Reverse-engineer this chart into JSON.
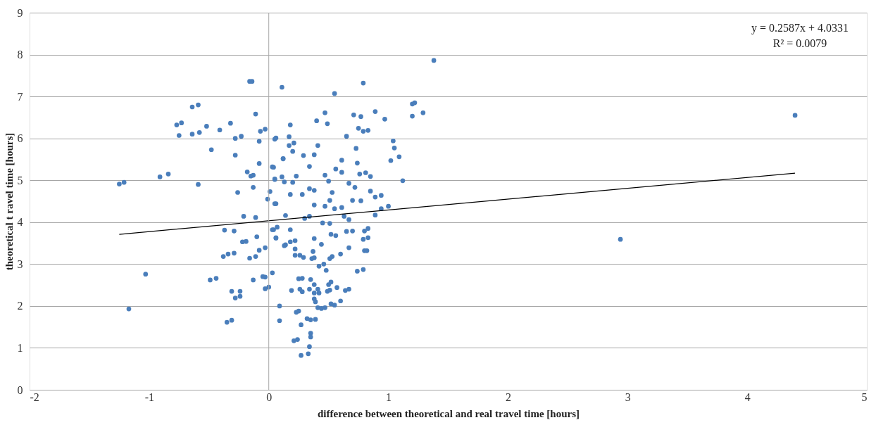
{
  "chart_data": {
    "type": "scatter",
    "xlabel": "difference between theoretical and real travel time [hours]",
    "ylabel": "theoretical t ravel time  [hours]",
    "xlim": [
      -2,
      5
    ],
    "xticks": [
      -2,
      -1,
      0,
      1,
      2,
      3,
      4,
      5
    ],
    "ylim": [
      0,
      9
    ],
    "yticks": [
      0,
      1,
      2,
      3,
      4,
      5,
      6,
      7,
      8,
      9
    ],
    "grid": "y",
    "marker": "circle",
    "annotations": [
      "y = 0.2587x + 4.0331",
      "R² = 0.0079"
    ],
    "ref_lines": [
      {
        "axis": "x",
        "value": 0,
        "color": "#a6a6a6"
      }
    ],
    "series": [
      {
        "color": "#4a7ebb",
        "x": [
          -0.16,
          -0.14,
          0.11,
          -0.64,
          -0.59,
          -0.11,
          -0.77,
          -0.73,
          -0.52,
          -0.41,
          -0.32,
          -0.75,
          -0.64,
          -0.58,
          -0.28,
          -0.23,
          -0.07,
          -0.03,
          -0.08,
          -0.48,
          -0.28,
          -0.08,
          -0.18,
          -0.15,
          -0.13,
          -1.25,
          -1.21,
          -0.91,
          -0.84,
          -0.59,
          -0.26,
          -0.13,
          -0.21,
          -0.11,
          -0.37,
          -0.29,
          -0.22,
          -0.19,
          -0.1,
          -0.38,
          -0.34,
          -0.29,
          -0.16,
          -0.11,
          -0.08,
          -0.03,
          -1.03,
          -0.49,
          -0.44,
          -0.13,
          -0.05,
          -0.03,
          0.03,
          -0.31,
          -0.24,
          -0.28,
          -0.24,
          -0.03,
          0.0,
          -1.17,
          -0.35,
          -0.31,
          0.09,
          0.09,
          0.13,
          0.06,
          0.04,
          0.05,
          0.04,
          0.01,
          -0.01,
          0.06,
          0.06,
          0.12,
          0.79,
          0.55,
          0.47,
          0.4,
          0.49,
          0.18,
          0.71,
          0.77,
          0.89,
          0.97,
          0.75,
          0.79,
          0.83,
          0.65,
          0.05,
          0.17,
          0.17,
          0.21,
          0.2,
          0.41,
          0.29,
          0.38,
          0.12,
          0.73,
          0.74,
          1.04,
          1.05,
          1.09,
          1.02,
          0.34,
          0.61,
          0.56,
          0.61,
          0.03,
          0.05,
          0.11,
          0.13,
          0.2,
          0.23,
          0.47,
          0.5,
          0.67,
          0.72,
          0.76,
          0.81,
          0.85,
          1.12,
          0.18,
          0.28,
          0.34,
          0.38,
          0.53,
          0.7,
          0.77,
          0.85,
          0.89,
          0.94,
          0.05,
          0.38,
          0.47,
          0.55,
          0.61,
          0.51,
          0.94,
          1.0,
          0.89,
          0.63,
          0.67,
          0.14,
          0.3,
          0.34,
          0.45,
          0.51,
          0.03,
          0.07,
          0.18,
          0.65,
          0.7,
          0.8,
          0.83,
          0.52,
          0.56,
          0.06,
          0.38,
          0.79,
          0.83,
          0.14,
          0.18,
          0.22,
          0.44,
          0.67,
          0.22,
          0.22,
          0.26,
          0.29,
          0.37,
          0.36,
          0.38,
          0.51,
          0.53,
          0.6,
          0.8,
          0.82,
          0.42,
          0.46,
          0.48,
          0.74,
          0.79,
          0.25,
          0.28,
          0.35,
          0.52,
          0.5,
          0.19,
          0.26,
          0.28,
          0.34,
          0.38,
          0.38,
          0.41,
          0.42,
          0.38,
          0.49,
          0.51,
          0.57,
          0.64,
          0.67,
          0.39,
          0.41,
          0.44,
          0.47,
          0.52,
          0.55,
          0.6,
          0.23,
          0.25,
          0.27,
          0.32,
          0.35,
          0.39,
          0.35,
          0.35,
          0.21,
          0.24,
          0.34,
          0.27,
          0.33,
          1.38,
          1.2,
          1.22,
          1.2,
          1.29,
          2.94,
          4.4
        ],
        "values": [
          7.36,
          7.36,
          7.22,
          6.75,
          6.8,
          6.58,
          6.32,
          6.37,
          6.29,
          6.2,
          6.36,
          6.07,
          6.1,
          6.14,
          6.0,
          6.05,
          6.17,
          6.22,
          5.93,
          5.73,
          5.6,
          5.4,
          5.2,
          5.1,
          5.12,
          4.91,
          4.95,
          5.08,
          5.15,
          4.9,
          4.71,
          4.83,
          4.14,
          4.11,
          3.81,
          3.79,
          3.53,
          3.54,
          3.65,
          3.18,
          3.24,
          3.26,
          3.14,
          3.18,
          3.33,
          3.39,
          2.76,
          2.62,
          2.66,
          2.62,
          2.7,
          2.69,
          2.79,
          2.35,
          2.35,
          2.19,
          2.23,
          2.41,
          2.45,
          1.93,
          1.61,
          1.66,
          2.0,
          1.65,
          3.44,
          3.62,
          3.82,
          5.03,
          5.31,
          4.73,
          4.55,
          4.44,
          6.01,
          5.51,
          7.32,
          7.07,
          6.61,
          6.42,
          6.35,
          6.32,
          6.56,
          6.52,
          6.64,
          6.46,
          6.24,
          6.17,
          6.19,
          6.05,
          5.98,
          6.04,
          5.83,
          5.89,
          5.69,
          5.83,
          5.59,
          5.61,
          5.52,
          5.76,
          5.41,
          5.94,
          5.77,
          5.56,
          5.47,
          5.33,
          5.48,
          5.27,
          5.19,
          5.32,
          5.02,
          5.08,
          4.96,
          4.95,
          5.1,
          5.12,
          4.98,
          4.93,
          4.83,
          5.15,
          5.18,
          5.09,
          4.99,
          4.66,
          4.66,
          4.8,
          4.76,
          4.71,
          4.52,
          4.51,
          4.74,
          4.6,
          4.64,
          4.44,
          4.41,
          4.38,
          4.32,
          4.35,
          4.52,
          4.32,
          4.38,
          4.17,
          4.14,
          4.06,
          4.16,
          4.09,
          4.14,
          3.98,
          3.97,
          3.82,
          3.88,
          3.82,
          3.78,
          3.79,
          3.79,
          3.85,
          3.71,
          3.68,
          3.63,
          3.61,
          3.59,
          3.63,
          3.46,
          3.53,
          3.56,
          3.47,
          3.39,
          3.36,
          3.21,
          3.21,
          3.16,
          3.3,
          3.13,
          3.15,
          3.13,
          3.18,
          3.24,
          3.32,
          3.32,
          2.95,
          3.0,
          2.85,
          2.83,
          2.87,
          2.65,
          2.66,
          2.63,
          2.57,
          2.51,
          2.37,
          2.4,
          2.34,
          2.4,
          2.51,
          2.31,
          2.4,
          2.31,
          2.17,
          2.35,
          2.38,
          2.44,
          2.37,
          2.4,
          2.1,
          1.96,
          1.94,
          1.96,
          2.05,
          2.02,
          2.12,
          1.85,
          1.88,
          1.55,
          1.7,
          1.67,
          1.68,
          1.35,
          1.26,
          1.17,
          1.2,
          1.03,
          0.82,
          0.86,
          7.86,
          6.82,
          6.85,
          6.53,
          6.61,
          3.59,
          6.55
        ]
      },
      {
        "type": "line",
        "color": "#000000",
        "marker": "none",
        "line_style": "solid",
        "x": [
          -1.25,
          4.4
        ],
        "values": [
          3.71,
          5.17
        ]
      }
    ]
  }
}
